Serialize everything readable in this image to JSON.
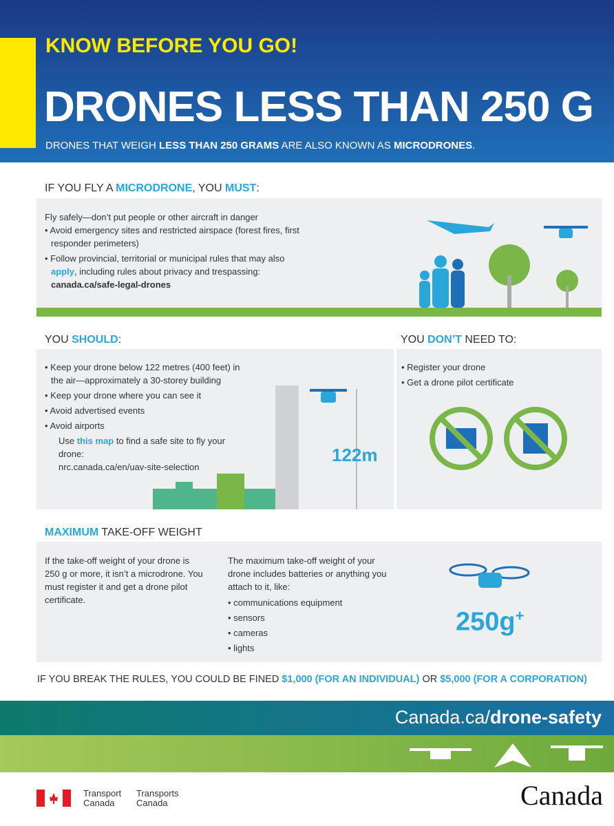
{
  "header": {
    "kicker": "KNOW BEFORE YOU GO!",
    "title": "DRONES LESS THAN 250 G",
    "subtitle": [
      "DRONES THAT WEIGH ",
      "LESS THAN 250 GRAMS",
      " ARE ALSO KNOWN AS ",
      "MICRODRONES",
      "."
    ]
  },
  "must": {
    "heading": [
      "IF YOU FLY A ",
      "MICRODRONE",
      ", YOU ",
      "MUST",
      ":"
    ],
    "intro": "Fly safely—don’t put people or other aircraft in danger",
    "bullet1": "Avoid emergency sites and restricted airspace (forest fires, first responder perimeters)",
    "bullet2": [
      "Follow provincial, territorial or municipal rules that may also ",
      "apply",
      ", including rules about privacy and trespassing:"
    ],
    "link": "canada.ca/safe-legal-drones"
  },
  "should": {
    "heading": [
      "YOU ",
      "SHOULD",
      ":"
    ],
    "bullets": [
      "Keep your drone below 122 metres (400 feet) in the air—approximately a 30-storey building",
      "Keep your drone where you can see it",
      "Avoid advertised events",
      "Avoid airports"
    ],
    "sub": [
      "Use ",
      "this map",
      " to find a safe site to fly your drone:"
    ],
    "link": "nrc.canada.ca/en/uav-site-selection",
    "height": "122m"
  },
  "dont": {
    "heading": [
      "YOU ",
      "DON’T",
      " NEED TO:"
    ],
    "bullets": [
      "Register your drone",
      "Get a drone pilot certificate"
    ]
  },
  "weight": {
    "heading": [
      "MAXIMUM",
      " TAKE-OFF WEIGHT"
    ],
    "left": "If the take-off weight of your drone is 250 g or more, it isn’t a microdrone. You must register it and get a drone pilot certificate.",
    "right": "The maximum take-off weight of your drone includes batteries or anything you attach to it, like:",
    "items": [
      "communications equipment",
      "sensors",
      "cameras",
      "lights"
    ],
    "badge": "250g",
    "badge_sup": "+"
  },
  "fine": [
    "IF YOU BREAK THE RULES, YOU COULD BE FINED ",
    "$1,000 (FOR AN INDIVIDUAL)",
    " OR ",
    "$5,000 (FOR A CORPORATION)"
  ],
  "footer": {
    "url": [
      "Canada.ca/",
      "drone-safety"
    ],
    "dept_en": [
      "Transport",
      "Canada"
    ],
    "dept_fr": [
      "Transports",
      "Canada"
    ],
    "wordmark": "Canada"
  }
}
